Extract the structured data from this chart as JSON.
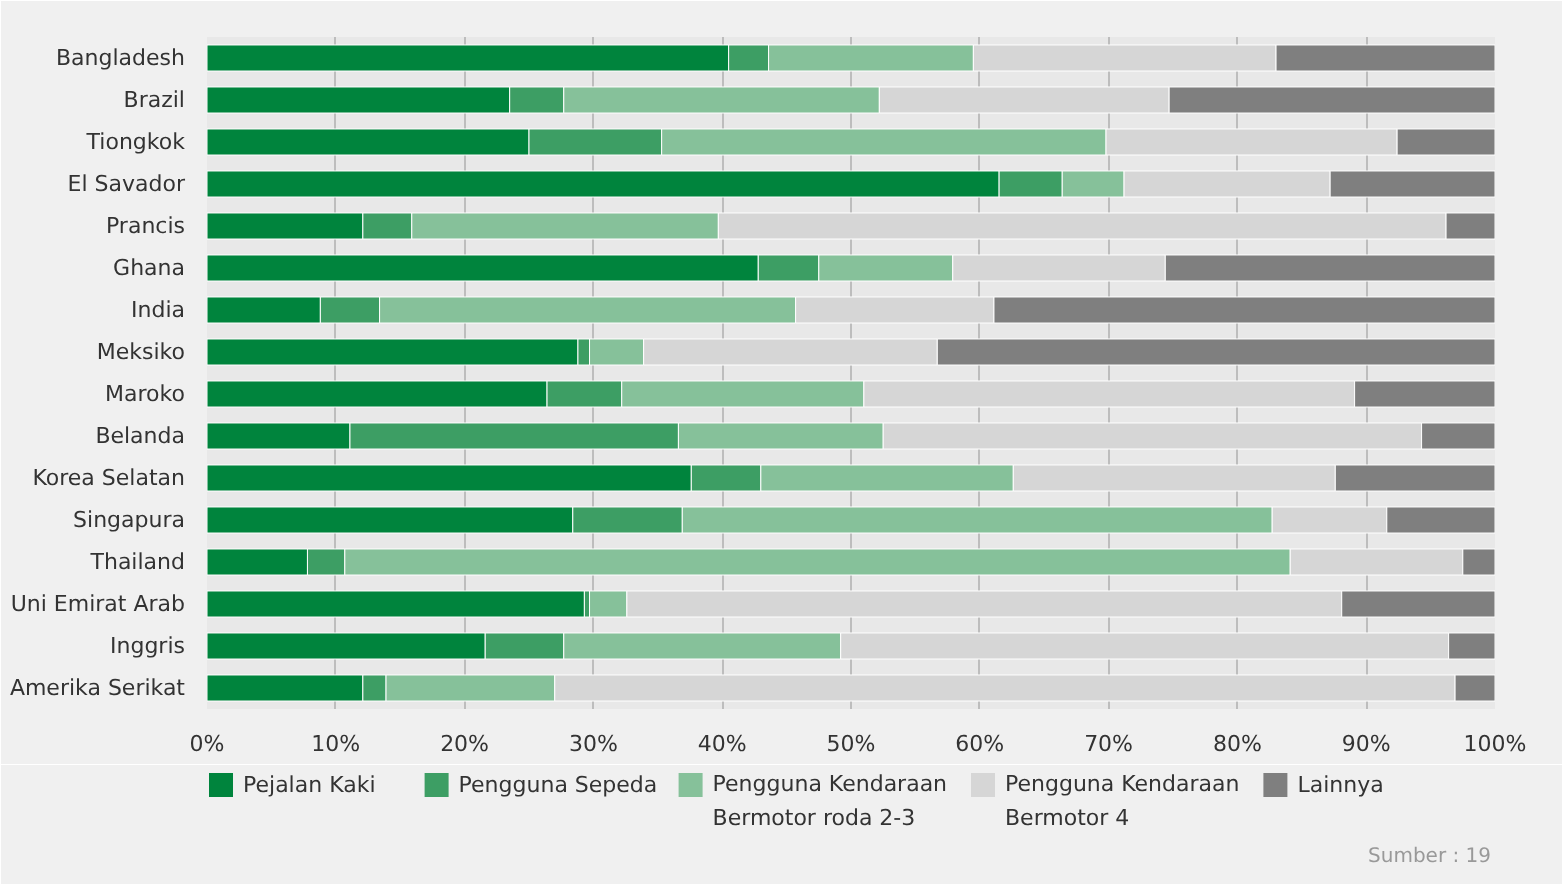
{
  "chart_data": {
    "type": "bar",
    "orientation": "horizontal",
    "stacked": true,
    "categories": [
      "Bangladesh",
      "Brazil",
      "Tiongkok",
      "El Savador",
      "Prancis",
      "Ghana",
      "India",
      "Meksiko",
      "Maroko",
      "Belanda",
      "Korea Selatan",
      "Singapura",
      "Thailand",
      "Uni Emirat Arab",
      "Inggris",
      "Amerika Serikat"
    ],
    "series": [
      {
        "name": "Pejalan Kaki",
        "color": "#00843d",
        "values": [
          40.5,
          23.5,
          25,
          61.5,
          12.1,
          42.8,
          8.8,
          28.8,
          26.4,
          11.1,
          37.6,
          28.4,
          7.8,
          29.3,
          21.6,
          12.1
        ]
      },
      {
        "name": "Pengguna Sepeda",
        "color": "#3d9e64",
        "values": [
          3.1,
          4.2,
          10.3,
          4.9,
          3.8,
          4.7,
          4.6,
          0.9,
          5.8,
          25.5,
          5.4,
          8.5,
          2.9,
          0.4,
          6.1,
          1.8
        ]
      },
      {
        "name": "Pengguna Kendaraan Bermotor roda 2-3",
        "color": "#86c19a",
        "values": [
          15.9,
          24.5,
          34.5,
          4.8,
          23.8,
          10.4,
          32.3,
          4.2,
          18.8,
          15.9,
          19.6,
          45.8,
          73.4,
          2.9,
          21.5,
          13.1
        ]
      },
      {
        "name": "Pengguna Kendaraan Bermotor 4",
        "color": "#d6d6d6",
        "values": [
          23.5,
          22.5,
          22.6,
          16,
          56.5,
          16.5,
          15.4,
          22.8,
          38.1,
          41.8,
          25,
          8.9,
          13.4,
          55.5,
          47.2,
          69.9
        ]
      },
      {
        "name": "Lainnya",
        "color": "#7f7f7f",
        "values": [
          17,
          25.3,
          7.6,
          12.8,
          3.8,
          25.6,
          38.9,
          43.3,
          10.9,
          5.7,
          12.4,
          8.4,
          2.5,
          11.9,
          3.6,
          3.1
        ]
      }
    ],
    "xlim": [
      0,
      100
    ],
    "xticks": [
      {
        "value": 0,
        "label": "0%"
      },
      {
        "value": 10,
        "label": "10%"
      },
      {
        "value": 20,
        "label": "20%"
      },
      {
        "value": 30,
        "label": "30%"
      },
      {
        "value": 40,
        "label": "40%"
      },
      {
        "value": 50,
        "label": "50%"
      },
      {
        "value": 60,
        "label": "60%"
      },
      {
        "value": 70,
        "label": "70%"
      },
      {
        "value": 80,
        "label": "80%"
      },
      {
        "value": 90,
        "label": "90%"
      },
      {
        "value": 100,
        "label": "100%"
      }
    ],
    "grid": "x",
    "legend": "bottom",
    "annotations": [
      "Sumber : 19"
    ]
  }
}
